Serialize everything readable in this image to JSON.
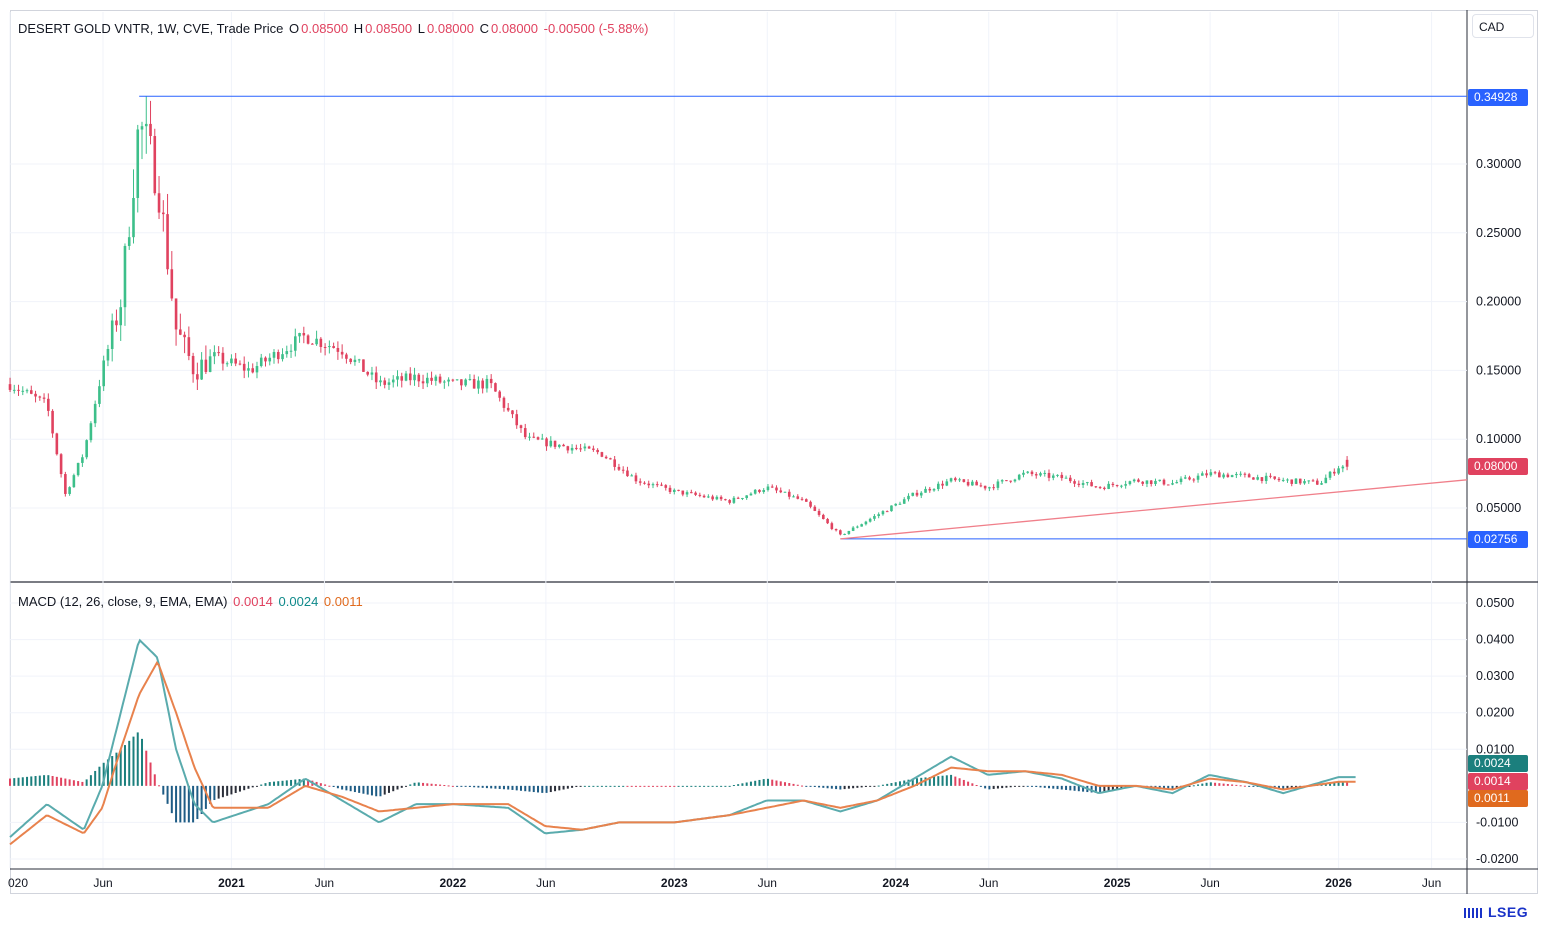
{
  "header": {
    "symbol": "DESERT GOLD VNTR, 1W, CVE, Trade Price",
    "open_label": "O",
    "open": "0.08500",
    "high_label": "H",
    "high": "0.08500",
    "low_label": "L",
    "low": "0.08000",
    "close_label": "C",
    "close": "0.08000",
    "change": "-0.00500 (-5.88%)"
  },
  "currency": "CAD",
  "macd_legend": {
    "label": "MACD (12, 26, close, 9, EMA, EMA)",
    "hist": "0.0014",
    "macd": "0.0024",
    "signal": "0.0011"
  },
  "price_tags": {
    "resistance": "0.34928",
    "last": "0.08000",
    "support": "0.02756"
  },
  "macd_tags": {
    "macd": "0.0024",
    "hist": "0.0014",
    "signal": "0.0011"
  },
  "branding": "LSEG",
  "colors": {
    "up": "#3dbf8a",
    "down": "#e0425f",
    "hline": "#2962ff",
    "trend": "#f07f8a",
    "macd": "#5aabad",
    "signal": "#e8824d",
    "hist_pos": "#1b7f7d",
    "hist_neg": "#1e5c85"
  },
  "chart_data": [
    {
      "type": "candlestick",
      "title": "DESERT GOLD VNTR, 1W, CVE, Trade Price",
      "y_ticks": [
        "0.30000",
        "0.25000",
        "0.20000",
        "0.15000",
        "0.10000",
        "0.05000"
      ],
      "ylim": [
        0.01,
        0.37
      ],
      "x_ticks": [
        "020",
        "Jun",
        "2021",
        "Jun",
        "2022",
        "Jun",
        "2023",
        "Jun",
        "2024",
        "Jun",
        "2025",
        "Jun",
        "2026",
        "Jun"
      ],
      "x_range": [
        "2020-01",
        "2026-08"
      ],
      "horizontal_lines": [
        {
          "value": 0.34928,
          "from": "2020-08"
        },
        {
          "value": 0.02756,
          "from": "2023-10"
        }
      ],
      "trendline": {
        "from": [
          "2023-10",
          0.02756
        ],
        "to": [
          "2026-08",
          0.0705
        ]
      },
      "ohlc_anchors": [
        [
          "2020-01",
          0.14
        ],
        [
          "2020-03",
          0.125
        ],
        [
          "2020-04",
          0.06
        ],
        [
          "2020-05",
          0.09
        ],
        [
          "2020-06",
          0.15
        ],
        [
          "2020-07",
          0.2
        ],
        [
          "2020-08",
          0.33
        ],
        [
          "2020-09",
          0.29
        ],
        [
          "2020-10",
          0.18
        ],
        [
          "2020-11",
          0.15
        ],
        [
          "2020-12",
          0.16
        ],
        [
          "2021-02",
          0.15
        ],
        [
          "2021-05",
          0.175
        ],
        [
          "2021-07",
          0.165
        ],
        [
          "2021-09",
          0.14
        ],
        [
          "2021-11",
          0.145
        ],
        [
          "2022-01",
          0.14
        ],
        [
          "2022-03",
          0.14
        ],
        [
          "2022-05",
          0.1
        ],
        [
          "2022-07",
          0.095
        ],
        [
          "2022-09",
          0.09
        ],
        [
          "2022-11",
          0.07
        ],
        [
          "2023-01",
          0.062
        ],
        [
          "2023-04",
          0.055
        ],
        [
          "2023-06",
          0.065
        ],
        [
          "2023-08",
          0.055
        ],
        [
          "2023-10",
          0.03
        ],
        [
          "2023-12",
          0.045
        ],
        [
          "2024-02",
          0.06
        ],
        [
          "2024-04",
          0.07
        ],
        [
          "2024-06",
          0.065
        ],
        [
          "2024-08",
          0.075
        ],
        [
          "2024-10",
          0.072
        ],
        [
          "2024-12",
          0.065
        ],
        [
          "2025-02",
          0.07
        ],
        [
          "2025-04",
          0.068
        ],
        [
          "2025-06",
          0.075
        ],
        [
          "2025-08",
          0.073
        ],
        [
          "2025-10",
          0.07
        ],
        [
          "2025-12",
          0.068
        ],
        [
          "2026-01",
          0.08
        ]
      ],
      "last": {
        "open": 0.085,
        "high": 0.085,
        "low": 0.08,
        "close": 0.08
      }
    },
    {
      "type": "line",
      "title": "MACD (12, 26, close, 9, EMA, EMA)",
      "y_ticks": [
        "0.0500",
        "0.0400",
        "0.0300",
        "0.0200",
        "0.0100",
        "-0.0100",
        "-0.0200"
      ],
      "ylim": [
        -0.022,
        0.052
      ],
      "series": [
        {
          "name": "MACD",
          "values": [
            [
              "2020-01",
              -0.014
            ],
            [
              "2020-03",
              -0.005
            ],
            [
              "2020-05",
              -0.012
            ],
            [
              "2020-06",
              0.0
            ],
            [
              "2020-07",
              0.02
            ],
            [
              "2020-08",
              0.04
            ],
            [
              "2020-09",
              0.035
            ],
            [
              "2020-10",
              0.01
            ],
            [
              "2020-11",
              -0.005
            ],
            [
              "2020-12",
              -0.01
            ],
            [
              "2021-03",
              -0.005
            ],
            [
              "2021-05",
              0.002
            ],
            [
              "2021-07",
              -0.004
            ],
            [
              "2021-09",
              -0.01
            ],
            [
              "2021-11",
              -0.005
            ],
            [
              "2022-01",
              -0.005
            ],
            [
              "2022-04",
              -0.006
            ],
            [
              "2022-06",
              -0.013
            ],
            [
              "2022-08",
              -0.012
            ],
            [
              "2022-10",
              -0.01
            ],
            [
              "2023-01",
              -0.01
            ],
            [
              "2023-04",
              -0.008
            ],
            [
              "2023-06",
              -0.004
            ],
            [
              "2023-08",
              -0.004
            ],
            [
              "2023-10",
              -0.007
            ],
            [
              "2023-12",
              -0.004
            ],
            [
              "2024-02",
              0.002
            ],
            [
              "2024-04",
              0.008
            ],
            [
              "2024-06",
              0.003
            ],
            [
              "2024-08",
              0.004
            ],
            [
              "2024-10",
              0.002
            ],
            [
              "2024-12",
              -0.002
            ],
            [
              "2025-02",
              0.0
            ],
            [
              "2025-04",
              -0.002
            ],
            [
              "2025-06",
              0.003
            ],
            [
              "2025-08",
              0.001
            ],
            [
              "2025-10",
              -0.002
            ],
            [
              "2026-01",
              0.0024
            ]
          ]
        },
        {
          "name": "Signal",
          "values": [
            [
              "2020-01",
              -0.016
            ],
            [
              "2020-03",
              -0.008
            ],
            [
              "2020-05",
              -0.013
            ],
            [
              "2020-06",
              -0.006
            ],
            [
              "2020-07",
              0.01
            ],
            [
              "2020-08",
              0.025
            ],
            [
              "2020-09",
              0.034
            ],
            [
              "2020-10",
              0.02
            ],
            [
              "2020-11",
              0.005
            ],
            [
              "2020-12",
              -0.006
            ],
            [
              "2021-03",
              -0.006
            ],
            [
              "2021-05",
              0.0
            ],
            [
              "2021-07",
              -0.003
            ],
            [
              "2021-09",
              -0.007
            ],
            [
              "2021-11",
              -0.006
            ],
            [
              "2022-01",
              -0.005
            ],
            [
              "2022-04",
              -0.005
            ],
            [
              "2022-06",
              -0.011
            ],
            [
              "2022-08",
              -0.012
            ],
            [
              "2022-10",
              -0.01
            ],
            [
              "2023-01",
              -0.01
            ],
            [
              "2023-04",
              -0.008
            ],
            [
              "2023-06",
              -0.006
            ],
            [
              "2023-08",
              -0.004
            ],
            [
              "2023-10",
              -0.006
            ],
            [
              "2023-12",
              -0.004
            ],
            [
              "2024-02",
              0.0
            ],
            [
              "2024-04",
              0.005
            ],
            [
              "2024-06",
              0.004
            ],
            [
              "2024-08",
              0.004
            ],
            [
              "2024-10",
              0.003
            ],
            [
              "2024-12",
              0.0
            ],
            [
              "2025-02",
              0.0
            ],
            [
              "2025-04",
              -0.001
            ],
            [
              "2025-06",
              0.002
            ],
            [
              "2025-08",
              0.001
            ],
            [
              "2025-10",
              -0.001
            ],
            [
              "2026-01",
              0.0011
            ]
          ]
        }
      ],
      "histogram_last": 0.0014
    }
  ]
}
